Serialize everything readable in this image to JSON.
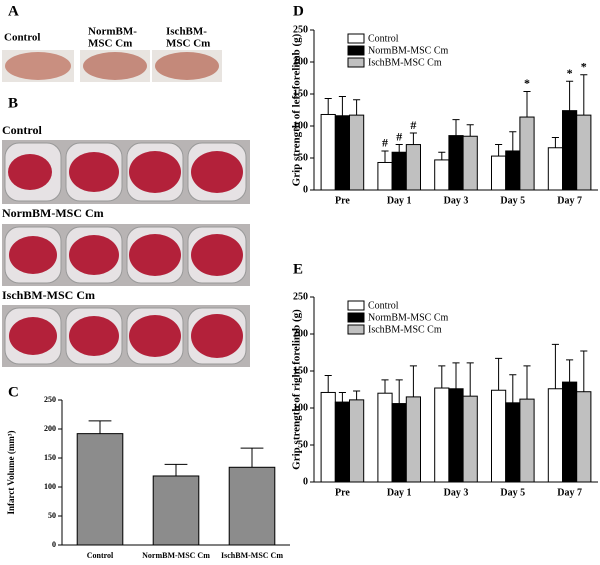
{
  "panel_labels": [
    "A",
    "B",
    "C",
    "D",
    "E"
  ],
  "panel_a": {
    "labels": [
      [
        "Control"
      ],
      [
        "NormBM-",
        "MSC Cm"
      ],
      [
        "IschBM-",
        "MSC Cm"
      ]
    ]
  },
  "panel_b": {
    "labels": [
      "Control",
      "NormBM-MSC Cm",
      "IschBM-MSC Cm"
    ]
  },
  "chart_data": [
    {
      "type": "bar",
      "ylabel": "Infarct Volume (mm³)",
      "categories": [
        "Control",
        "NormBM-MSC Cm",
        "IschBM-MSC Cm"
      ],
      "values": [
        192,
        119,
        134
      ],
      "errors": [
        22,
        20,
        33
      ],
      "color": "#8c8c8c",
      "ylim": [
        0,
        250
      ],
      "yticks": [
        0,
        50,
        100,
        150,
        200,
        250
      ],
      "grid": false
    },
    {
      "type": "bar",
      "ylabel": "Grip strength of left forelimb (g)",
      "categories": [
        "Pre",
        "Day 1",
        "Day 3",
        "Day 5",
        "Day 7"
      ],
      "series": [
        {
          "name": "Control",
          "color": "#ffffff",
          "values": [
            118,
            43,
            47,
            53,
            66
          ],
          "errors": [
            25,
            18,
            12,
            18,
            16
          ],
          "markers": [
            null,
            "#",
            null,
            null,
            null
          ]
        },
        {
          "name": "NormBM-MSC Cm",
          "color": "#000000",
          "values": [
            116,
            59,
            85,
            61,
            124
          ],
          "errors": [
            30,
            12,
            25,
            30,
            46
          ],
          "markers": [
            null,
            "#",
            null,
            null,
            "*"
          ]
        },
        {
          "name": "IschBM-MSC Cm",
          "color": "#c0c0c0",
          "values": [
            117,
            71,
            84,
            114,
            117
          ],
          "errors": [
            24,
            18,
            18,
            40,
            63
          ],
          "markers": [
            null,
            "#",
            null,
            "*",
            "*"
          ]
        }
      ],
      "ylim": [
        0,
        250
      ],
      "yticks": [
        0,
        50,
        100,
        150,
        200,
        250
      ],
      "grid": false,
      "legend": "upper left"
    },
    {
      "type": "bar",
      "ylabel": "Grip strength of  right forelimb (g)",
      "categories": [
        "Pre",
        "Day 1",
        "Day 3",
        "Day 5",
        "Day 7"
      ],
      "series": [
        {
          "name": "Control",
          "color": "#ffffff",
          "values": [
            121,
            120,
            127,
            124,
            126
          ],
          "errors": [
            23,
            18,
            30,
            43,
            60
          ]
        },
        {
          "name": "NormBM-MSC Cm",
          "color": "#000000",
          "values": [
            108,
            106,
            126,
            107,
            135
          ],
          "errors": [
            13,
            32,
            35,
            38,
            30
          ]
        },
        {
          "name": "IschBM-MSC Cm",
          "color": "#c0c0c0",
          "values": [
            111,
            115,
            116,
            112,
            122
          ],
          "errors": [
            12,
            42,
            45,
            45,
            55
          ]
        }
      ],
      "ylim": [
        0,
        250
      ],
      "yticks": [
        0,
        50,
        100,
        150,
        200,
        250
      ],
      "grid": false,
      "legend": "upper left"
    }
  ]
}
